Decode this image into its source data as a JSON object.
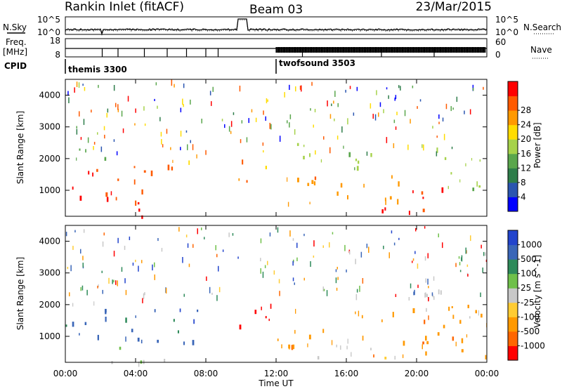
{
  "header": {
    "title": "Rankin Inlet (fitACF)",
    "beam": "Beam 03",
    "date": "23/Mar/2015"
  },
  "top_panels": {
    "nsky_label": "N.Sky",
    "nsearch_label": "N.Search",
    "noise_left_ticks": [
      "10^5",
      "10^0"
    ],
    "noise_right_ticks": [
      "10^5",
      "10^0"
    ],
    "freq_label_1": "Freq.",
    "freq_label_2": "[MHz]",
    "freq_ticks": [
      "18",
      "8"
    ],
    "nave_label": "Nave",
    "nave_ticks": [
      "60",
      "0"
    ],
    "cpid_label": "CPID",
    "cpid_entries": [
      {
        "name": "themis 3300",
        "start_hour": 0
      },
      {
        "name": "twofsound 3503",
        "start_hour": 12
      }
    ]
  },
  "x_axis": {
    "label": "Time UT",
    "tick_labels": [
      "00:00",
      "04:00",
      "08:00",
      "12:00",
      "16:00",
      "20:00",
      "00:00"
    ],
    "range_hours": [
      0,
      24
    ]
  },
  "power_panel": {
    "ylabel": "Slant Range [km]",
    "yticks": [
      "1000",
      "2000",
      "3000",
      "4000"
    ],
    "colorbar_label": "Power [dB]",
    "colorbar_ticks": [
      "4",
      "8",
      "12",
      "16",
      "20",
      "24",
      "28"
    ],
    "colors": [
      "#0000ff",
      "#2a55b0",
      "#2e7d4a",
      "#5aa64c",
      "#a6d24a",
      "#ffdc00",
      "#ff9900",
      "#ff5a00",
      "#ff0000"
    ]
  },
  "velocity_panel": {
    "ylabel": "Slant Range [km]",
    "yticks": [
      "1000",
      "2000",
      "3000",
      "4000"
    ],
    "colorbar_label": "Velocity [m s^-1]",
    "colorbar_ticks": [
      "1000",
      "500",
      "100",
      "25",
      "-25",
      "-100",
      "-500",
      "-1000"
    ],
    "colors": [
      "#2244cc",
      "#3a66b8",
      "#2e8a5a",
      "#6fc04a",
      "#c8c8c8",
      "#ffcc33",
      "#ff9900",
      "#ff6600",
      "#ff0000"
    ]
  },
  "chart_data": {
    "type": "heatmap",
    "title": "Rankin Inlet (fitACF)",
    "xlabel": "Time UT",
    "xlim_hours": [
      0,
      24
    ],
    "ylim_km": [
      180,
      4500
    ],
    "panels": [
      {
        "name": "Power",
        "unit": "dB",
        "range": [
          0,
          30
        ],
        "blobs": [
          {
            "t0": 0.0,
            "t1": 3.5,
            "r0": 600,
            "r1": 1700,
            "value": 26
          },
          {
            "t0": 0.3,
            "t1": 1.5,
            "r0": 1900,
            "r1": 2900,
            "value": 10
          },
          {
            "t0": 2.0,
            "t1": 2.8,
            "r0": 1800,
            "r1": 2400,
            "value": 14
          },
          {
            "t0": 2.5,
            "t1": 5.5,
            "r0": 200,
            "r1": 700,
            "value": 27
          },
          {
            "t0": 3.5,
            "t1": 5.2,
            "r0": 800,
            "r1": 2000,
            "value": 25
          },
          {
            "t0": 5.5,
            "t1": 6.5,
            "r0": 1100,
            "r1": 2100,
            "value": 24
          },
          {
            "t0": 6.8,
            "t1": 7.8,
            "r0": 1400,
            "r1": 2200,
            "value": 20
          },
          {
            "t0": 9.5,
            "t1": 10.5,
            "r0": 1000,
            "r1": 2000,
            "value": 24
          },
          {
            "t0": 10.5,
            "t1": 11.5,
            "r0": 1600,
            "r1": 2100,
            "value": 20
          },
          {
            "t0": 12.0,
            "t1": 19.0,
            "r0": 500,
            "r1": 1500,
            "value": 22
          },
          {
            "t0": 13.0,
            "t1": 17.5,
            "r0": 1500,
            "r1": 2500,
            "value": 14
          },
          {
            "t0": 18.0,
            "t1": 21.5,
            "r0": 300,
            "r1": 1300,
            "value": 26
          },
          {
            "t0": 21.0,
            "t1": 24.0,
            "r0": 1000,
            "r1": 2500,
            "value": 15
          }
        ]
      },
      {
        "name": "Velocity",
        "unit": "m s^-1",
        "range": [
          -1000,
          1000
        ],
        "blobs": [
          {
            "t0": 0.0,
            "t1": 7.8,
            "r0": 800,
            "r1": 1900,
            "value": 600
          },
          {
            "t0": 0.3,
            "t1": 2.0,
            "r0": 2000,
            "r1": 2800,
            "value": 0
          },
          {
            "t0": 1.0,
            "t1": 6.0,
            "r0": 200,
            "r1": 700,
            "value": 80
          },
          {
            "t0": 6.5,
            "t1": 7.8,
            "r0": 1500,
            "r1": 2100,
            "value": 900
          },
          {
            "t0": 9.5,
            "t1": 12.0,
            "r0": 1200,
            "r1": 2100,
            "value": -900
          },
          {
            "t0": 12.0,
            "t1": 17.0,
            "r0": 700,
            "r1": 2000,
            "value": -500
          },
          {
            "t0": 14.0,
            "t1": 19.0,
            "r0": 300,
            "r1": 1000,
            "value": -80
          },
          {
            "t0": 17.5,
            "t1": 24.0,
            "r0": 400,
            "r1": 2200,
            "value": -500
          },
          {
            "t0": 20.0,
            "t1": 24.0,
            "r0": 1500,
            "r1": 2500,
            "value": 0
          }
        ]
      }
    ]
  }
}
